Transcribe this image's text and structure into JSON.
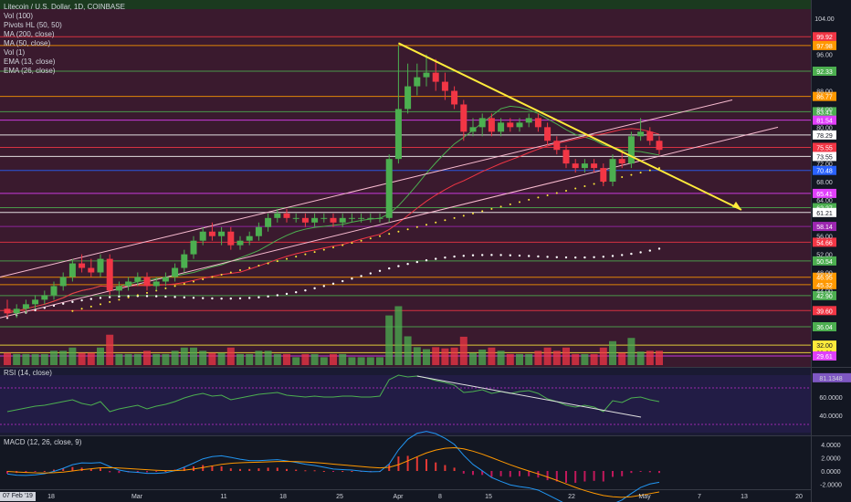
{
  "header": {
    "symbol_line": "Litecoin / U.S. Dollar, 1D, COINBASE",
    "indicators": [
      "Vol (100)",
      "Pivots HL (50, 50)",
      "MA (200, close)",
      "MA (50, close)",
      "Vol (1)",
      "EMA (13, close)",
      "EMA (26, close)"
    ]
  },
  "rsi_label": "RSI (14, close)",
  "macd_label": "MACD (12, 26, close, 9)",
  "date_badge": "07 Feb '19",
  "x_axis_labels": [
    "18",
    "Mar",
    "11",
    "18",
    "25",
    "Apr",
    "8",
    "15",
    "22",
    "May",
    "7",
    "13",
    "20"
  ],
  "price_axis_ticks": [
    "104.00",
    "96.00",
    "88.00",
    "84.00",
    "80.00",
    "72.00",
    "68.00",
    "64.00",
    "56.00",
    "52.00",
    "48.00",
    "44.00"
  ],
  "price_levels": [
    {
      "label": "99.92",
      "color": "#f23645"
    },
    {
      "label": "97.98",
      "color": "#ff9800"
    },
    {
      "label": "92.33",
      "color": "#4caf50"
    },
    {
      "label": "86.77",
      "color": "#ff9800"
    },
    {
      "label": "83.41",
      "color": "#4caf50"
    },
    {
      "label": "81.54",
      "color": "#e040fb"
    },
    {
      "label": "78.29",
      "color": "#ffffff"
    },
    {
      "label": "75.55",
      "color": "#f23645"
    },
    {
      "label": "73.55",
      "color": "#ffffff"
    },
    {
      "label": "70.48",
      "color": "#2962ff"
    },
    {
      "label": "65.41",
      "color": "#e040fb"
    },
    {
      "label": "62.27",
      "color": "#4caf50"
    },
    {
      "label": "61.21",
      "color": "#ffffff"
    },
    {
      "label": "58.14",
      "color": "#9c27b0"
    },
    {
      "label": "54.66",
      "color": "#f23645"
    },
    {
      "label": "50.54",
      "color": "#4caf50"
    },
    {
      "label": "46.95",
      "color": "#ff9800"
    },
    {
      "label": "45.32",
      "color": "#ff9800"
    },
    {
      "label": "42.90",
      "color": "#4caf50"
    },
    {
      "label": "39.60",
      "color": "#f23645"
    },
    {
      "label": "36.04",
      "color": "#4caf50"
    },
    {
      "label": "32.00",
      "color": "#ffeb3b"
    },
    {
      "label": "30.33",
      "color": "#ffeb3b"
    },
    {
      "label": "29.61",
      "color": "#e040fb"
    }
  ],
  "rsi_ticks": [
    "81.1348",
    "60.0000",
    "40.0000"
  ],
  "macd_ticks": [
    "4.0000",
    "2.0000",
    "0.0000",
    "-2.0000"
  ],
  "colors": {
    "up": "#4caf50",
    "down": "#f23645",
    "trendline": "#ffeb3b",
    "rsi": "#4caf50",
    "macd": "#2196f3",
    "signal": "#ff9800"
  },
  "chart_data": {
    "type": "candlestick",
    "price_scale": [
      28,
      106
    ],
    "candles": [
      {
        "o": 40,
        "h": 42,
        "l": 38,
        "c": 39
      },
      {
        "o": 39,
        "h": 41,
        "l": 38,
        "c": 40
      },
      {
        "o": 40,
        "h": 42,
        "l": 39,
        "c": 41
      },
      {
        "o": 41,
        "h": 43,
        "l": 40,
        "c": 42
      },
      {
        "o": 42,
        "h": 44,
        "l": 41,
        "c": 43
      },
      {
        "o": 43,
        "h": 46,
        "l": 42,
        "c": 45
      },
      {
        "o": 45,
        "h": 48,
        "l": 44,
        "c": 47
      },
      {
        "o": 47,
        "h": 51,
        "l": 46,
        "c": 50
      },
      {
        "o": 50,
        "h": 52,
        "l": 48,
        "c": 49
      },
      {
        "o": 49,
        "h": 51,
        "l": 47,
        "c": 48
      },
      {
        "o": 48,
        "h": 52,
        "l": 47,
        "c": 51
      },
      {
        "o": 51,
        "h": 52,
        "l": 43,
        "c": 44
      },
      {
        "o": 44,
        "h": 46,
        "l": 43,
        "c": 45
      },
      {
        "o": 45,
        "h": 47,
        "l": 44,
        "c": 46
      },
      {
        "o": 46,
        "h": 48,
        "l": 45,
        "c": 47
      },
      {
        "o": 47,
        "h": 48,
        "l": 44,
        "c": 45
      },
      {
        "o": 45,
        "h": 47,
        "l": 44,
        "c": 46
      },
      {
        "o": 46,
        "h": 48,
        "l": 45,
        "c": 47
      },
      {
        "o": 47,
        "h": 50,
        "l": 46,
        "c": 49
      },
      {
        "o": 49,
        "h": 53,
        "l": 48,
        "c": 52
      },
      {
        "o": 52,
        "h": 56,
        "l": 51,
        "c": 55
      },
      {
        "o": 55,
        "h": 58,
        "l": 54,
        "c": 57
      },
      {
        "o": 57,
        "h": 59,
        "l": 55,
        "c": 56
      },
      {
        "o": 56,
        "h": 58,
        "l": 54,
        "c": 57
      },
      {
        "o": 57,
        "h": 58,
        "l": 53,
        "c": 54
      },
      {
        "o": 54,
        "h": 56,
        "l": 53,
        "c": 55
      },
      {
        "o": 55,
        "h": 57,
        "l": 54,
        "c": 56
      },
      {
        "o": 56,
        "h": 59,
        "l": 55,
        "c": 58
      },
      {
        "o": 58,
        "h": 61,
        "l": 57,
        "c": 60
      },
      {
        "o": 60,
        "h": 62,
        "l": 59,
        "c": 61
      },
      {
        "o": 61,
        "h": 62,
        "l": 59,
        "c": 60
      },
      {
        "o": 60,
        "h": 61,
        "l": 59,
        "c": 60
      },
      {
        "o": 60,
        "h": 61,
        "l": 58,
        "c": 59
      },
      {
        "o": 59,
        "h": 61,
        "l": 58,
        "c": 60
      },
      {
        "o": 60,
        "h": 61,
        "l": 59,
        "c": 60
      },
      {
        "o": 60,
        "h": 61,
        "l": 58,
        "c": 59
      },
      {
        "o": 59,
        "h": 61,
        "l": 58,
        "c": 60
      },
      {
        "o": 60,
        "h": 61,
        "l": 59,
        "c": 60
      },
      {
        "o": 60,
        "h": 61,
        "l": 59,
        "c": 60
      },
      {
        "o": 60,
        "h": 61,
        "l": 59,
        "c": 60
      },
      {
        "o": 60,
        "h": 61,
        "l": 59,
        "c": 60
      },
      {
        "o": 60,
        "h": 74,
        "l": 59,
        "c": 73
      },
      {
        "o": 73,
        "h": 98,
        "l": 72,
        "c": 84
      },
      {
        "o": 84,
        "h": 94,
        "l": 83,
        "c": 89
      },
      {
        "o": 89,
        "h": 94,
        "l": 87,
        "c": 91
      },
      {
        "o": 91,
        "h": 96,
        "l": 89,
        "c": 92
      },
      {
        "o": 92,
        "h": 95,
        "l": 88,
        "c": 90
      },
      {
        "o": 90,
        "h": 92,
        "l": 86,
        "c": 88
      },
      {
        "o": 88,
        "h": 89,
        "l": 84,
        "c": 85
      },
      {
        "o": 85,
        "h": 86,
        "l": 77,
        "c": 79
      },
      {
        "o": 79,
        "h": 82,
        "l": 78,
        "c": 80
      },
      {
        "o": 80,
        "h": 83,
        "l": 78,
        "c": 82
      },
      {
        "o": 82,
        "h": 83,
        "l": 78,
        "c": 79
      },
      {
        "o": 79,
        "h": 82,
        "l": 78,
        "c": 81
      },
      {
        "o": 81,
        "h": 82,
        "l": 79,
        "c": 80
      },
      {
        "o": 80,
        "h": 82,
        "l": 79,
        "c": 81
      },
      {
        "o": 81,
        "h": 83,
        "l": 80,
        "c": 82
      },
      {
        "o": 82,
        "h": 83,
        "l": 79,
        "c": 80
      },
      {
        "o": 80,
        "h": 81,
        "l": 76,
        "c": 77
      },
      {
        "o": 77,
        "h": 78,
        "l": 74,
        "c": 75
      },
      {
        "o": 75,
        "h": 76,
        "l": 71,
        "c": 72
      },
      {
        "o": 72,
        "h": 73,
        "l": 70,
        "c": 71
      },
      {
        "o": 71,
        "h": 73,
        "l": 70,
        "c": 72
      },
      {
        "o": 72,
        "h": 73,
        "l": 70,
        "c": 71
      },
      {
        "o": 71,
        "h": 72,
        "l": 67,
        "c": 68
      },
      {
        "o": 68,
        "h": 74,
        "l": 67,
        "c": 73
      },
      {
        "o": 73,
        "h": 75,
        "l": 71,
        "c": 72
      },
      {
        "o": 72,
        "h": 79,
        "l": 71,
        "c": 78
      },
      {
        "o": 78,
        "h": 82,
        "l": 77,
        "c": 79
      },
      {
        "o": 79,
        "h": 80,
        "l": 76,
        "c": 77
      },
      {
        "o": 77,
        "h": 78,
        "l": 74,
        "c": 75
      }
    ],
    "rsi": [
      44,
      46,
      48,
      50,
      51,
      53,
      55,
      57,
      53,
      51,
      55,
      44,
      47,
      49,
      51,
      47,
      50,
      52,
      55,
      59,
      62,
      64,
      61,
      62,
      57,
      59,
      61,
      63,
      64,
      65,
      62,
      61,
      60,
      61,
      60,
      60,
      61,
      61,
      60,
      60,
      61,
      79,
      84,
      82,
      83,
      81,
      78,
      76,
      73,
      65,
      66,
      68,
      64,
      66,
      64,
      66,
      67,
      64,
      58,
      55,
      51,
      49,
      51,
      49,
      44,
      56,
      54,
      59,
      60,
      57,
      55
    ],
    "macd_hist": [
      -0.4,
      -0.3,
      -0.2,
      -0.1,
      0.0,
      0.2,
      0.4,
      0.6,
      0.5,
      0.3,
      0.4,
      -0.2,
      -0.3,
      -0.2,
      -0.1,
      -0.2,
      -0.1,
      0.0,
      0.2,
      0.5,
      0.7,
      0.9,
      0.8,
      0.7,
      0.4,
      0.3,
      0.3,
      0.4,
      0.5,
      0.5,
      0.3,
      0.2,
      0.1,
      0.1,
      0.0,
      -0.1,
      0.0,
      0.0,
      -0.1,
      -0.1,
      0.0,
      1.0,
      2.2,
      2.3,
      2.1,
      1.8,
      1.3,
      0.9,
      0.5,
      -0.4,
      -0.6,
      -0.6,
      -0.9,
      -0.8,
      -0.9,
      -0.8,
      -0.8,
      -1.0,
      -1.4,
      -1.6,
      -1.8,
      -1.8,
      -1.6,
      -1.5,
      -1.6,
      -0.9,
      -0.8,
      -0.3,
      -0.1,
      -0.2,
      -0.3
    ]
  }
}
